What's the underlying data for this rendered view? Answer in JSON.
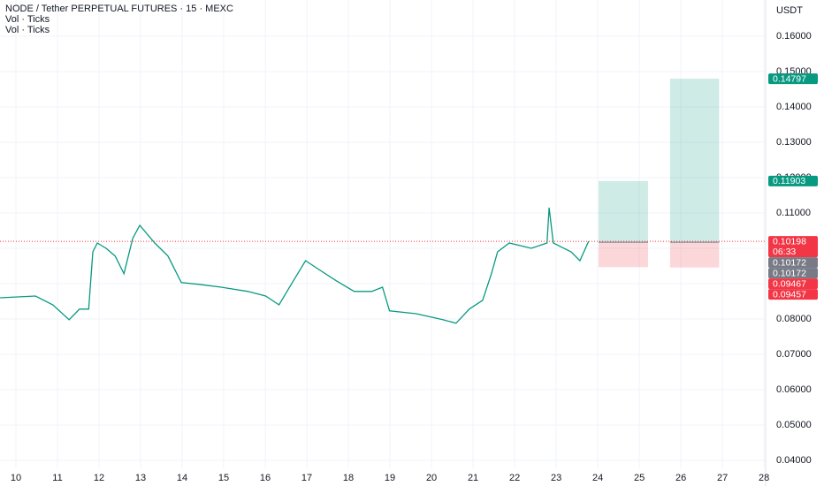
{
  "chart_data": {
    "type": "line",
    "title": "NODE / Tether PERPETUAL FUTURES · 15 · MEXC",
    "indicators": [
      "Vol · Ticks",
      "Vol · Ticks"
    ],
    "y_axis_label": "USDT",
    "x": [
      9.62,
      10.47,
      10.89,
      11.28,
      11.53,
      11.75,
      11.85,
      11.96,
      12.17,
      12.39,
      12.6,
      12.81,
      12.98,
      13.34,
      13.66,
      13.98,
      14.41,
      14.94,
      15.58,
      16.01,
      16.33,
      16.65,
      16.97,
      17.29,
      17.71,
      18.14,
      18.56,
      18.82,
      18.99,
      19.63,
      20.27,
      20.59,
      20.91,
      21.23,
      21.44,
      21.59,
      21.87,
      22.4,
      22.78,
      22.83,
      22.93,
      23.36,
      23.57,
      23.78
    ],
    "series": [
      {
        "name": "NODE / Tether",
        "color": "#089981",
        "values": [
          0.086,
          0.0865,
          0.084,
          0.0798,
          0.0828,
          0.0828,
          0.099,
          0.1015,
          0.1,
          0.0978,
          0.0928,
          0.1028,
          0.1065,
          0.1015,
          0.0978,
          0.0903,
          0.0898,
          0.089,
          0.0878,
          0.0865,
          0.084,
          0.0903,
          0.0965,
          0.094,
          0.0908,
          0.0878,
          0.0878,
          0.089,
          0.0823,
          0.0815,
          0.0798,
          0.0788,
          0.0828,
          0.0853,
          0.0928,
          0.099,
          0.1015,
          0.1,
          0.1015,
          0.1115,
          0.1015,
          0.099,
          0.0965,
          0.102
        ]
      }
    ],
    "xlim": [
      9.617,
      28.04
    ],
    "xticks": [
      10,
      11,
      12,
      13,
      14,
      15,
      16,
      17,
      18,
      19,
      20,
      21,
      22,
      23,
      24,
      25,
      26,
      27,
      28
    ],
    "ylim": [
      0.03775,
      0.17025
    ],
    "yticks": [
      {
        "value": 0.04,
        "label": "0.04000"
      },
      {
        "value": 0.05,
        "label": "0.05000"
      },
      {
        "value": 0.06,
        "label": "0.06000"
      },
      {
        "value": 0.07,
        "label": "0.07000"
      },
      {
        "value": 0.08,
        "label": "0.08000"
      },
      {
        "value": 0.09,
        "label": "0.09000"
      },
      {
        "value": 0.1,
        "label": "0.10000"
      },
      {
        "value": 0.11,
        "label": "0.11000"
      },
      {
        "value": 0.12,
        "label": "0.12000"
      },
      {
        "value": 0.13,
        "label": "0.13000"
      },
      {
        "value": 0.14,
        "label": "0.14000"
      },
      {
        "value": 0.15,
        "label": "0.15000"
      },
      {
        "value": 0.16,
        "label": "0.16000"
      }
    ],
    "grid": true,
    "positions": [
      {
        "x": [
          24.02,
          25.21
        ],
        "entry": 0.10172,
        "target": 0.11903,
        "stop": 0.09467
      },
      {
        "x": [
          25.74,
          26.92
        ],
        "entry": 0.10172,
        "target": 0.14797,
        "stop": 0.09457
      }
    ],
    "price_labels": [
      {
        "value": 0.14797,
        "color": "#089981"
      },
      {
        "value": 0.11903,
        "color": "#089981"
      },
      {
        "value": 0.10198,
        "color": "#f23645",
        "countdown": "06:33"
      },
      {
        "value": 0.10172,
        "color": "#787b86"
      },
      {
        "value": 0.10172,
        "color": "#787b86"
      },
      {
        "value": 0.09467,
        "color": "#f23645"
      },
      {
        "value": 0.09457,
        "color": "#f23645"
      }
    ]
  }
}
